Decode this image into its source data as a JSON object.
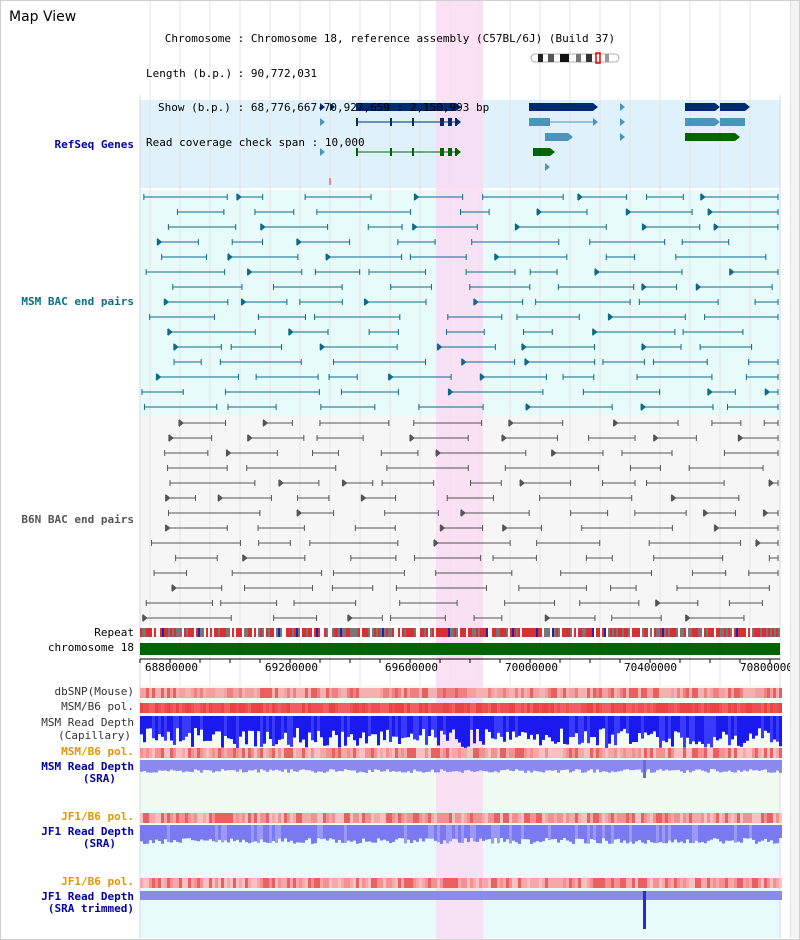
{
  "header": {
    "title": "Map View",
    "rows": [
      {
        "key": "Chromosome",
        "value": "Chromosome 18, reference assembly (C57BL/6J) (Build 37)"
      },
      {
        "key": "Length (b.p.)",
        "value": "90,772,031"
      },
      {
        "key": "Show (b.p.)",
        "value": "68,776,667-70,927,659 : 2,150,993 bp"
      },
      {
        "key": "Read coverage check span",
        "value": "10,000"
      }
    ]
  },
  "tracks": {
    "refseq": "RefSeq Genes",
    "msm_bac": "MSM BAC end pairs",
    "b6n_bac": "B6N BAC end pairs",
    "repeat": "Repeat",
    "chromosome": "chromosome 18",
    "dbsnp": "dbSNP(Mouse)",
    "msm_b6_pol_1": "MSM/B6 pol.",
    "msm_read_depth_cap_1": "MSM Read Depth",
    "msm_read_depth_cap_2": "(Capillary)",
    "msm_b6_pol_2": "MSM/B6 pol.",
    "msm_read_depth_sra_1": "MSM Read Depth",
    "msm_read_depth_sra_2": "(SRA)",
    "jf1_b6_pol_1": "JF1/B6 pol.",
    "jf1_read_depth_sra_1": "JF1 Read Depth",
    "jf1_read_depth_sra_2": "(SRA)",
    "jf1_b6_pol_2": "JF1/B6 pol.",
    "jf1_read_depth_trim_1": "JF1 Read Depth",
    "jf1_read_depth_trim_2": "(SRA trimmed)"
  },
  "axis": {
    "ticks": [
      "68800000",
      "69200000",
      "69600000",
      "70000000",
      "70400000",
      "70800000"
    ]
  },
  "colors": {
    "refseq_bg": "#dff1fb",
    "msm_bg": "#e8fbfb",
    "b6n_bg": "#f6f6f6",
    "highlight": "#f9dcf2",
    "chromosome": "#006400",
    "gene_dark": "#002b6e",
    "gene_mid": "#4c94bc",
    "gene_green": "#006400",
    "msm_line": "#0e6a8a",
    "b6n_line": "#555555",
    "label_blue": "#0000aa",
    "label_teal": "#0a6f8a",
    "label_orange": "#e69500"
  }
}
